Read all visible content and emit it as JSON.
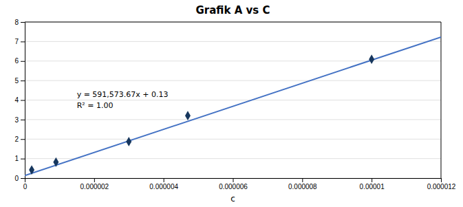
{
  "chart_data": {
    "type": "scatter",
    "title": "Grafik A vs C",
    "xlabel": "c",
    "xlim": [
      0,
      1.2e-05
    ],
    "ylim": [
      0,
      8
    ],
    "xticks": [
      0,
      {
        "value": 2e-06,
        "label": "0.000002"
      },
      {
        "value": 4e-06,
        "label": "0.000004"
      },
      {
        "value": 6e-06,
        "label": "0.000006"
      },
      {
        "value": 8e-06,
        "label": "0.000008"
      },
      {
        "value": 1e-05,
        "label": "0.00001"
      },
      {
        "value": 1.2e-05,
        "label": "0.000012"
      }
    ],
    "yticks": [
      0,
      1,
      2,
      3,
      4,
      5,
      6,
      7,
      8
    ],
    "grid": "y",
    "series": [
      {
        "type": "scatter",
        "color": "#17375E",
        "marker": "diamond",
        "x": [
          2e-07,
          9e-07,
          3e-06,
          4.7e-06,
          1e-05
        ],
        "values": [
          0.42,
          0.82,
          1.87,
          3.2,
          6.09
        ]
      },
      {
        "type": "line",
        "color": "#4472C4",
        "x": [
          0,
          1.2e-05
        ],
        "values": [
          0.13,
          7.22888404
        ]
      }
    ],
    "annotations": [
      {
        "x": 1.5e-06,
        "y": 4.55,
        "text": [
          "y = 591,573.67x + 0.13",
          "R² = 1.00"
        ]
      }
    ]
  }
}
